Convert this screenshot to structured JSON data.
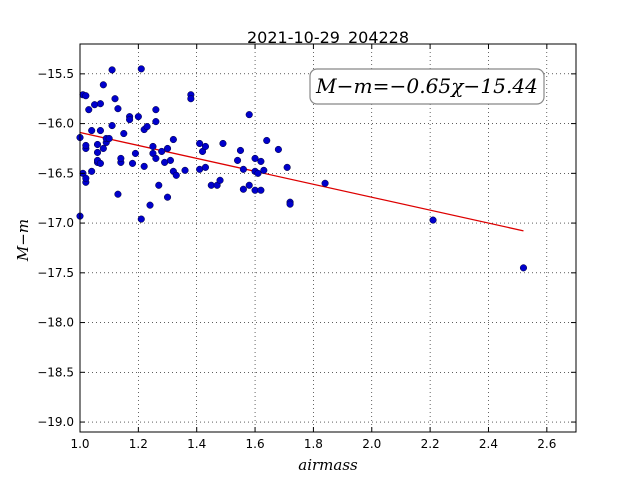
{
  "chart_data": {
    "type": "scatter",
    "title": "2021-10-29_204228",
    "xlabel": "airmass",
    "ylabel": "M−m",
    "annotation": "M−m=−0.65χ−15.44",
    "xlim": [
      1.0,
      2.7
    ],
    "ylim": [
      -19.1,
      -15.2
    ],
    "xticks": [
      1.0,
      1.2,
      1.4,
      1.6,
      1.8,
      2.0,
      2.2,
      2.4,
      2.6
    ],
    "yticks": [
      -15.5,
      -16.0,
      -16.5,
      -17.0,
      -17.5,
      -18.0,
      -18.5,
      -19.0
    ],
    "xtick_labels": [
      "1.0",
      "1.2",
      "1.4",
      "1.6",
      "1.8",
      "2.0",
      "2.2",
      "2.4",
      "2.6"
    ],
    "ytick_labels": [
      "−15.5",
      "−16.0",
      "−16.5",
      "−17.0",
      "−17.5",
      "−18.0",
      "−18.5",
      "−19.0"
    ],
    "grid": true,
    "colors": {
      "points": "#0000cc",
      "fit": "#dd0000"
    },
    "fit": {
      "slope": -0.65,
      "intercept": -15.44,
      "x_range": [
        1.0,
        2.52
      ]
    },
    "points": [
      [
        1.0,
        -16.93
      ],
      [
        1.0,
        -16.14
      ],
      [
        1.01,
        -15.71
      ],
      [
        1.01,
        -16.5
      ],
      [
        1.02,
        -16.59
      ],
      [
        1.02,
        -16.55
      ],
      [
        1.02,
        -16.25
      ],
      [
        1.02,
        -16.22
      ],
      [
        1.02,
        -15.72
      ],
      [
        1.03,
        -15.86
      ],
      [
        1.04,
        -16.07
      ],
      [
        1.04,
        -16.48
      ],
      [
        1.05,
        -15.81
      ],
      [
        1.06,
        -16.29
      ],
      [
        1.06,
        -16.39
      ],
      [
        1.06,
        -16.37
      ],
      [
        1.06,
        -16.21
      ],
      [
        1.07,
        -16.07
      ],
      [
        1.07,
        -16.4
      ],
      [
        1.07,
        -15.8
      ],
      [
        1.08,
        -15.61
      ],
      [
        1.08,
        -16.25
      ],
      [
        1.09,
        -16.19
      ],
      [
        1.09,
        -16.15
      ],
      [
        1.1,
        -16.15
      ],
      [
        1.11,
        -16.02
      ],
      [
        1.11,
        -15.46
      ],
      [
        1.12,
        -15.75
      ],
      [
        1.13,
        -15.85
      ],
      [
        1.13,
        -16.71
      ],
      [
        1.14,
        -16.39
      ],
      [
        1.14,
        -16.35
      ],
      [
        1.15,
        -16.1
      ],
      [
        1.17,
        -15.93
      ],
      [
        1.17,
        -15.96
      ],
      [
        1.18,
        -16.4
      ],
      [
        1.19,
        -16.3
      ],
      [
        1.2,
        -15.93
      ],
      [
        1.21,
        -16.96
      ],
      [
        1.21,
        -15.45
      ],
      [
        1.22,
        -16.06
      ],
      [
        1.22,
        -16.43
      ],
      [
        1.23,
        -16.03
      ],
      [
        1.24,
        -16.82
      ],
      [
        1.25,
        -16.3
      ],
      [
        1.25,
        -16.23
      ],
      [
        1.26,
        -15.86
      ],
      [
        1.26,
        -15.98
      ],
      [
        1.26,
        -16.35
      ],
      [
        1.27,
        -16.62
      ],
      [
        1.28,
        -16.28
      ],
      [
        1.29,
        -16.39
      ],
      [
        1.3,
        -16.25
      ],
      [
        1.3,
        -16.74
      ],
      [
        1.31,
        -16.37
      ],
      [
        1.32,
        -16.16
      ],
      [
        1.32,
        -16.48
      ],
      [
        1.33,
        -16.52
      ],
      [
        1.36,
        -16.47
      ],
      [
        1.38,
        -15.71
      ],
      [
        1.38,
        -15.75
      ],
      [
        1.41,
        -16.2
      ],
      [
        1.41,
        -16.46
      ],
      [
        1.42,
        -16.28
      ],
      [
        1.43,
        -16.23
      ],
      [
        1.43,
        -16.44
      ],
      [
        1.45,
        -16.62
      ],
      [
        1.47,
        -16.62
      ],
      [
        1.48,
        -16.57
      ],
      [
        1.49,
        -16.2
      ],
      [
        1.54,
        -16.37
      ],
      [
        1.55,
        -16.27
      ],
      [
        1.56,
        -16.46
      ],
      [
        1.56,
        -16.66
      ],
      [
        1.58,
        -15.91
      ],
      [
        1.58,
        -16.62
      ],
      [
        1.6,
        -16.35
      ],
      [
        1.6,
        -16.67
      ],
      [
        1.6,
        -16.48
      ],
      [
        1.61,
        -16.5
      ],
      [
        1.62,
        -16.38
      ],
      [
        1.62,
        -16.67
      ],
      [
        1.63,
        -16.47
      ],
      [
        1.64,
        -16.17
      ],
      [
        1.68,
        -16.26
      ],
      [
        1.71,
        -16.44
      ],
      [
        1.72,
        -16.79
      ],
      [
        1.72,
        -16.81
      ],
      [
        1.84,
        -16.6
      ],
      [
        2.21,
        -16.97
      ],
      [
        2.52,
        -17.45
      ]
    ]
  }
}
